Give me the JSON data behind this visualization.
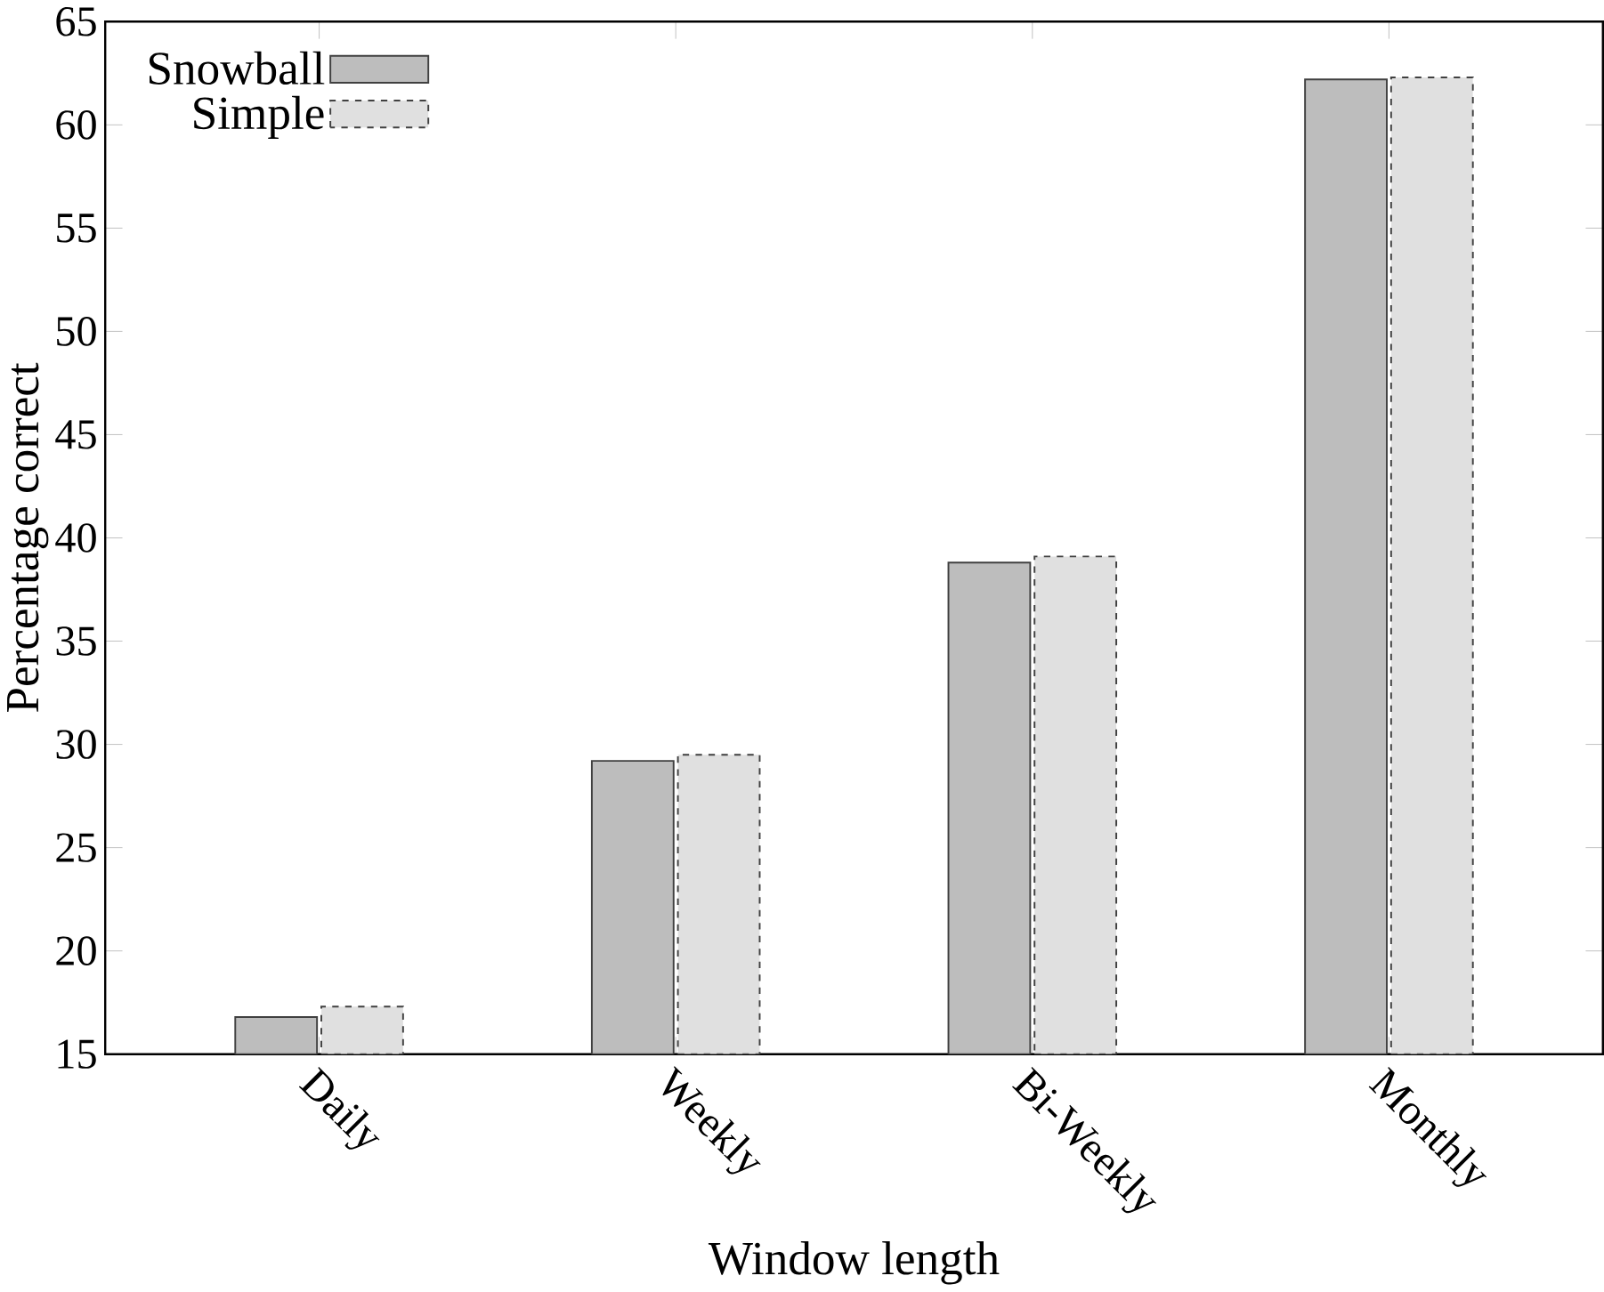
{
  "chart_data": {
    "type": "bar",
    "xlabel": "Window length",
    "ylabel": "Percentage correct",
    "categories": [
      "Daily",
      "Weekly",
      "Bi-Weekly",
      "Monthly"
    ],
    "series": [
      {
        "name": "Snowball",
        "color": "#bdbdbd",
        "line_style": "solid",
        "values": [
          16.8,
          29.2,
          38.8,
          62.2
        ]
      },
      {
        "name": "Simple",
        "color": "#e0e0e0",
        "line_style": "dashed",
        "values": [
          17.3,
          29.5,
          39.1,
          62.3
        ]
      }
    ],
    "ylim": [
      15,
      65
    ],
    "yticks": [
      15,
      20,
      25,
      30,
      35,
      40,
      45,
      50,
      55,
      60,
      65
    ],
    "legend": "top left",
    "grid": false
  }
}
